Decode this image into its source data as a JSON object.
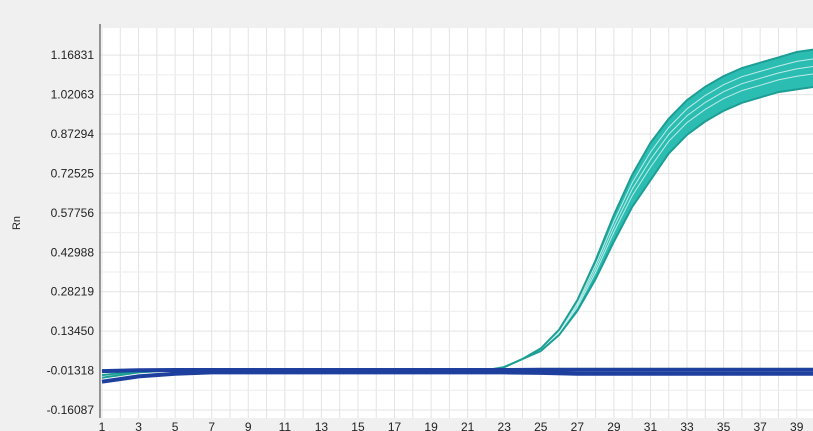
{
  "chart_data": {
    "type": "line",
    "title": "",
    "xlabel": "",
    "ylabel": "Rn",
    "x_ticks": [
      "1",
      "3",
      "5",
      "7",
      "9",
      "11",
      "13",
      "15",
      "17",
      "19",
      "21",
      "23",
      "25",
      "27",
      "29",
      "31",
      "33",
      "35",
      "37",
      "39"
    ],
    "y_ticks": [
      "-0.16087",
      "-0.01318",
      "0.13450",
      "0.28219",
      "0.42988",
      "0.57756",
      "0.72525",
      "0.87294",
      "1.02063",
      "1.16831"
    ],
    "xlim": [
      1,
      40
    ],
    "ylim": [
      -0.16087,
      1.3
    ],
    "grid": true,
    "legend": "none",
    "colors": {
      "amplification": "#2cbdb2",
      "amplification_edge": "#1d9e95",
      "baseline": "#1f3f9e"
    },
    "series": [
      {
        "x": [
          1,
          3,
          5,
          7,
          9,
          11,
          13,
          15,
          17,
          19,
          21,
          22,
          23,
          24,
          25,
          26,
          27,
          28,
          29,
          30,
          31,
          32,
          33,
          34,
          35,
          36,
          37,
          38,
          39,
          40
        ],
        "values": [
          -0.04,
          -0.02,
          -0.012,
          -0.01,
          -0.01,
          -0.01,
          -0.01,
          -0.01,
          -0.01,
          -0.012,
          -0.015,
          -0.012,
          0.0,
          0.03,
          0.06,
          0.12,
          0.21,
          0.33,
          0.47,
          0.6,
          0.7,
          0.8,
          0.87,
          0.92,
          0.96,
          0.99,
          1.01,
          1.03,
          1.04,
          1.05
        ]
      },
      {
        "x": [
          1,
          3,
          5,
          7,
          9,
          11,
          13,
          15,
          17,
          19,
          21,
          22,
          23,
          24,
          25,
          26,
          27,
          28,
          29,
          30,
          31,
          32,
          33,
          34,
          35,
          36,
          37,
          38,
          39,
          40
        ],
        "values": [
          -0.03,
          -0.015,
          -0.012,
          -0.01,
          -0.01,
          -0.01,
          -0.01,
          -0.01,
          -0.01,
          -0.012,
          -0.015,
          -0.012,
          0.0,
          0.03,
          0.07,
          0.14,
          0.25,
          0.4,
          0.57,
          0.72,
          0.84,
          0.93,
          1.0,
          1.05,
          1.09,
          1.12,
          1.14,
          1.16,
          1.18,
          1.19
        ]
      },
      {
        "x": [
          1,
          3,
          5,
          7,
          9,
          11,
          13,
          15,
          17,
          19,
          21,
          23,
          25,
          27,
          29,
          31,
          33,
          35,
          37,
          39,
          40
        ],
        "values": [
          -0.055,
          -0.035,
          -0.025,
          -0.02,
          -0.02,
          -0.02,
          -0.02,
          -0.02,
          -0.02,
          -0.02,
          -0.02,
          -0.02,
          -0.022,
          -0.025,
          -0.025,
          -0.025,
          -0.025,
          -0.025,
          -0.025,
          -0.025,
          -0.025
        ]
      },
      {
        "x": [
          1,
          3,
          5,
          7,
          9,
          11,
          13,
          15,
          17,
          19,
          21,
          23,
          25,
          27,
          29,
          31,
          33,
          35,
          37,
          39,
          40
        ],
        "values": [
          -0.015,
          -0.012,
          -0.011,
          -0.011,
          -0.011,
          -0.011,
          -0.011,
          -0.011,
          -0.011,
          -0.011,
          -0.011,
          -0.011,
          -0.01,
          -0.01,
          -0.01,
          -0.01,
          -0.01,
          -0.01,
          -0.01,
          -0.01,
          -0.01
        ]
      }
    ]
  }
}
